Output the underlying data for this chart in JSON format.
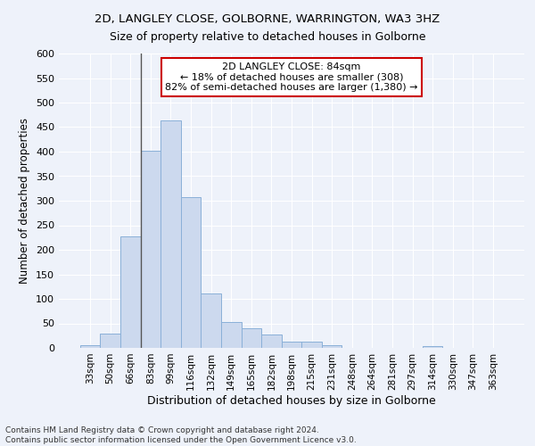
{
  "title1": "2D, LANGLEY CLOSE, GOLBORNE, WARRINGTON, WA3 3HZ",
  "title2": "Size of property relative to detached houses in Golborne",
  "xlabel": "Distribution of detached houses by size in Golborne",
  "ylabel": "Number of detached properties",
  "categories": [
    "33sqm",
    "50sqm",
    "66sqm",
    "83sqm",
    "99sqm",
    "116sqm",
    "132sqm",
    "149sqm",
    "165sqm",
    "182sqm",
    "198sqm",
    "215sqm",
    "231sqm",
    "248sqm",
    "264sqm",
    "281sqm",
    "297sqm",
    "314sqm",
    "330sqm",
    "347sqm",
    "363sqm"
  ],
  "values": [
    5,
    30,
    228,
    402,
    463,
    308,
    111,
    53,
    40,
    27,
    13,
    12,
    5,
    0,
    0,
    0,
    0,
    4,
    0,
    0,
    0
  ],
  "bar_color": "#ccd9ee",
  "bar_edge_color": "#8ab0d8",
  "vline_x": 2.5,
  "vline_color": "#555555",
  "annotation_text1": "2D LANGLEY CLOSE: 84sqm",
  "annotation_text2": "← 18% of detached houses are smaller (308)",
  "annotation_text3": "82% of semi-detached houses are larger (1,380) →",
  "annotation_box_color": "#ffffff",
  "annotation_box_edge_color": "#cc0000",
  "ylim": [
    0,
    600
  ],
  "yticks": [
    0,
    50,
    100,
    150,
    200,
    250,
    300,
    350,
    400,
    450,
    500,
    550,
    600
  ],
  "footer1": "Contains HM Land Registry data © Crown copyright and database right 2024.",
  "footer2": "Contains public sector information licensed under the Open Government Licence v3.0.",
  "bg_color": "#eef2fa",
  "plot_bg_color": "#eef2fa",
  "grid_color": "#ffffff",
  "title1_fontsize": 9.5,
  "title2_fontsize": 9.0,
  "ylabel_fontsize": 8.5,
  "xlabel_fontsize": 9.0,
  "tick_fontsize": 8.0,
  "xtick_fontsize": 7.5,
  "annotation_fontsize": 8.0,
  "footer_fontsize": 6.5
}
